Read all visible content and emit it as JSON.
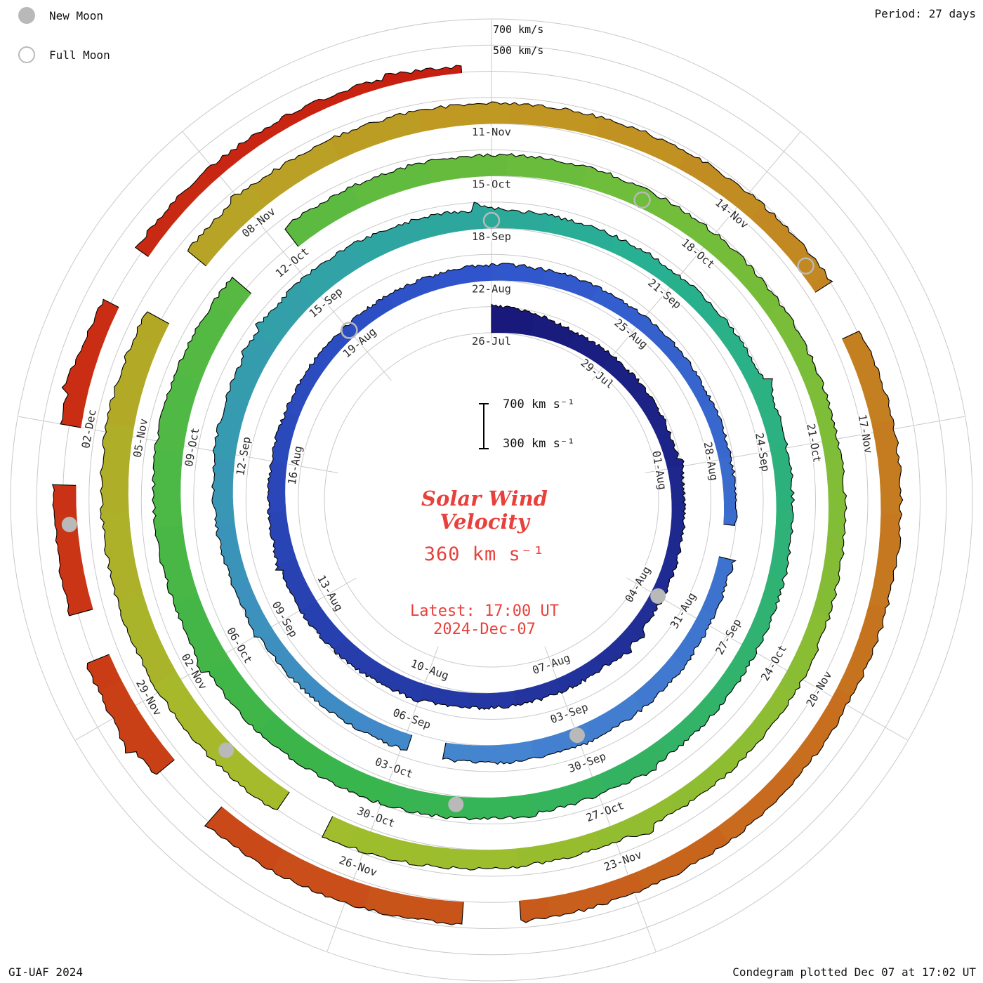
{
  "header": {
    "legend": {
      "new_moon": "New Moon",
      "full_moon": "Full Moon"
    },
    "period": "Period: 27 days"
  },
  "footer": {
    "left": "GI-UAF 2024",
    "right": "Condegram plotted Dec 07 at 17:02 UT"
  },
  "axis": {
    "outer_top": "700 km/s",
    "outer_mid": "500 km/s"
  },
  "center": {
    "scalebar_top": "700 km s⁻¹",
    "scalebar_bottom": "300 km s⁻¹",
    "title_line1": "Solar Wind",
    "title_line2": "Velocity",
    "value": "360 km s⁻¹",
    "latest_line1": "Latest: 17:00 UT",
    "latest_line2": "2024-Dec-07"
  },
  "colors": {
    "accent_red": "#e8413c",
    "grid": "#c9c9c9",
    "label": "#2a2a2a",
    "moon": "#b9b9b9",
    "outline": "#000000"
  },
  "chart_data": {
    "type": "area",
    "variant": "condegram-polar-spiral",
    "title": "Solar Wind Velocity Condegram",
    "period_days": 27,
    "total_days": 134.7,
    "start_date": "2024-Jul-26",
    "latest_date": "2024-Dec-07",
    "latest_time": "17:00 UT",
    "latest_value_kms": 360,
    "velocity_range_kms": [
      300,
      700
    ],
    "outer_ring_labels_kms": [
      500,
      700
    ],
    "date_ticks": [
      {
        "offset": 0,
        "label": "26-Jul"
      },
      {
        "offset": 3,
        "label": "29-Jul"
      },
      {
        "offset": 6,
        "label": "01-Aug"
      },
      {
        "offset": 9,
        "label": "04-Aug"
      },
      {
        "offset": 12,
        "label": "07-Aug"
      },
      {
        "offset": 15,
        "label": "10-Aug"
      },
      {
        "offset": 18,
        "label": "13-Aug"
      },
      {
        "offset": 21,
        "label": "16-Aug"
      },
      {
        "offset": 24,
        "label": "19-Aug"
      },
      {
        "offset": 27,
        "label": "22-Aug"
      },
      {
        "offset": 30,
        "label": "25-Aug"
      },
      {
        "offset": 33,
        "label": "28-Aug"
      },
      {
        "offset": 36,
        "label": "31-Aug"
      },
      {
        "offset": 39,
        "label": "03-Sep"
      },
      {
        "offset": 42,
        "label": "06-Sep"
      },
      {
        "offset": 45,
        "label": "09-Sep"
      },
      {
        "offset": 48,
        "label": "12-Sep"
      },
      {
        "offset": 51,
        "label": "15-Sep"
      },
      {
        "offset": 54,
        "label": "18-Sep"
      },
      {
        "offset": 57,
        "label": "21-Sep"
      },
      {
        "offset": 60,
        "label": "24-Sep"
      },
      {
        "offset": 63,
        "label": "27-Sep"
      },
      {
        "offset": 66,
        "label": "30-Sep"
      },
      {
        "offset": 69,
        "label": "03-Oct"
      },
      {
        "offset": 72,
        "label": "06-Oct"
      },
      {
        "offset": 75,
        "label": "09-Oct"
      },
      {
        "offset": 78,
        "label": "12-Oct"
      },
      {
        "offset": 81,
        "label": "15-Oct"
      },
      {
        "offset": 84,
        "label": "18-Oct"
      },
      {
        "offset": 87,
        "label": "21-Oct"
      },
      {
        "offset": 90,
        "label": "24-Oct"
      },
      {
        "offset": 93,
        "label": "27-Oct"
      },
      {
        "offset": 96,
        "label": "30-Oct"
      },
      {
        "offset": 99,
        "label": "02-Nov"
      },
      {
        "offset": 102,
        "label": "05-Nov"
      },
      {
        "offset": 105,
        "label": "08-Nov"
      },
      {
        "offset": 108,
        "label": "11-Nov"
      },
      {
        "offset": 111,
        "label": "14-Nov"
      },
      {
        "offset": 114,
        "label": "17-Nov"
      },
      {
        "offset": 117,
        "label": "20-Nov"
      },
      {
        "offset": 120,
        "label": "23-Nov"
      },
      {
        "offset": 123,
        "label": "26-Nov"
      },
      {
        "offset": 126,
        "label": "29-Nov"
      },
      {
        "offset": 129,
        "label": "02-Dec"
      }
    ],
    "velocity_points": [
      [
        0,
        560
      ],
      [
        2,
        450
      ],
      [
        6,
        420
      ],
      [
        9,
        420
      ],
      [
        12,
        430
      ],
      [
        15,
        450
      ],
      [
        18,
        480
      ],
      [
        21,
        450
      ],
      [
        24,
        420
      ],
      [
        27,
        450
      ],
      [
        30,
        430
      ],
      [
        33,
        410
      ],
      [
        36,
        440
      ],
      [
        39,
        480
      ],
      [
        42,
        450
      ],
      [
        45,
        440
      ],
      [
        48,
        500
      ],
      [
        51,
        540
      ],
      [
        54,
        470
      ],
      [
        57,
        440
      ],
      [
        60,
        460
      ],
      [
        63,
        450
      ],
      [
        66,
        480
      ],
      [
        69,
        510
      ],
      [
        72,
        540
      ],
      [
        75,
        560
      ],
      [
        78,
        520
      ],
      [
        81,
        500
      ],
      [
        84,
        470
      ],
      [
        87,
        450
      ],
      [
        90,
        470
      ],
      [
        93,
        450
      ],
      [
        96,
        500
      ],
      [
        99,
        540
      ],
      [
        102,
        560
      ],
      [
        105,
        520
      ],
      [
        108,
        490
      ],
      [
        111,
        470
      ],
      [
        114,
        500
      ],
      [
        117,
        460
      ],
      [
        120,
        480
      ],
      [
        123,
        520
      ],
      [
        126,
        540
      ],
      [
        129,
        500
      ],
      [
        131,
        440
      ],
      [
        133,
        400
      ],
      [
        134.7,
        360
      ]
    ],
    "gaps": [
      [
        34.2,
        34.8
      ],
      [
        41.3,
        41.9
      ],
      [
        77.3,
        78.2
      ],
      [
        96.5,
        97.1
      ],
      [
        103.4,
        104.2
      ],
      [
        112.3,
        112.9
      ],
      [
        121.2,
        121.8
      ],
      [
        124.6,
        125.3
      ],
      [
        126.6,
        127.1
      ],
      [
        128.4,
        129.0
      ],
      [
        130.3,
        130.9
      ]
    ],
    "new_moon_offsets": [
      9,
      39,
      68,
      98,
      128
    ],
    "full_moon_offsets": [
      24,
      54,
      83,
      112
    ],
    "color_stops": [
      [
        0.0,
        "#181878"
      ],
      [
        0.2,
        "#2f55cc"
      ],
      [
        0.3,
        "#4584d0"
      ],
      [
        0.42,
        "#27b091"
      ],
      [
        0.52,
        "#3ab54a"
      ],
      [
        0.62,
        "#71bd3a"
      ],
      [
        0.72,
        "#a3bd2c"
      ],
      [
        0.8,
        "#bf9922"
      ],
      [
        0.88,
        "#c86a1e"
      ],
      [
        0.95,
        "#c93315"
      ],
      [
        1.0,
        "#c81f10"
      ]
    ]
  }
}
